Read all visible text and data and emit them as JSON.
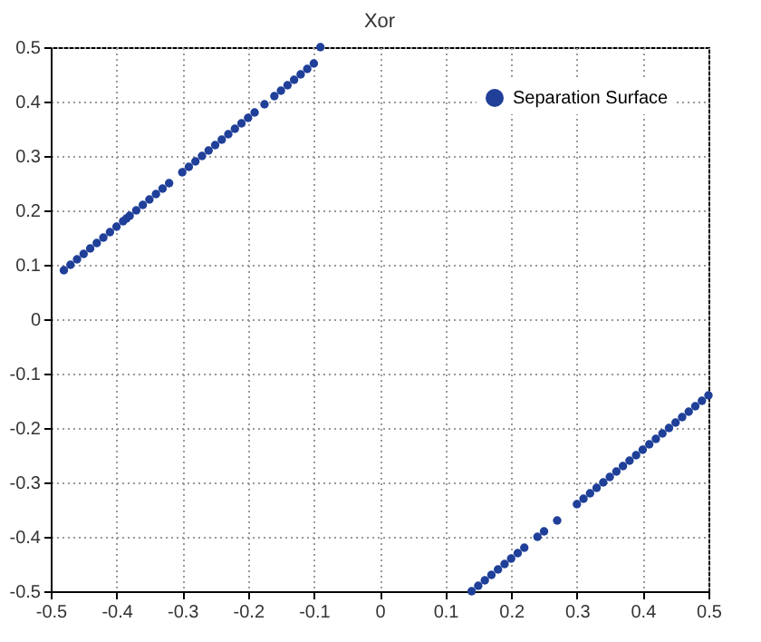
{
  "chart_data": {
    "type": "scatter",
    "title": "Xor",
    "xlim": [
      -0.5,
      0.5
    ],
    "ylim": [
      -0.5,
      0.5
    ],
    "xticks": [
      -0.5,
      -0.4,
      -0.3,
      -0.2,
      -0.1,
      0,
      0.1,
      0.2,
      0.3,
      0.4,
      0.5
    ],
    "yticks": [
      -0.5,
      -0.4,
      -0.3,
      -0.2,
      -0.1,
      0,
      0.1,
      0.2,
      0.3,
      0.4,
      0.5
    ],
    "grid": true,
    "legend": "top right",
    "marker": "circle",
    "series": [
      {
        "name": "Separation Surface",
        "color": "#1f3f99",
        "x": [
          -0.48,
          -0.47,
          -0.46,
          -0.45,
          -0.44,
          -0.43,
          -0.42,
          -0.41,
          -0.4,
          -0.39,
          -0.385,
          -0.38,
          -0.37,
          -0.36,
          -0.35,
          -0.34,
          -0.33,
          -0.32,
          -0.3,
          -0.29,
          -0.28,
          -0.27,
          -0.26,
          -0.25,
          -0.24,
          -0.23,
          -0.22,
          -0.21,
          -0.2,
          -0.19,
          -0.175,
          -0.16,
          -0.15,
          -0.14,
          -0.13,
          -0.12,
          -0.11,
          -0.1,
          -0.09,
          0.14,
          0.15,
          0.16,
          0.17,
          0.18,
          0.19,
          0.2,
          0.21,
          0.22,
          0.24,
          0.25,
          0.27,
          0.3,
          0.31,
          0.32,
          0.33,
          0.34,
          0.35,
          0.36,
          0.37,
          0.38,
          0.39,
          0.4,
          0.41,
          0.42,
          0.43,
          0.44,
          0.45,
          0.46,
          0.47,
          0.48,
          0.49,
          0.5
        ],
        "values": [
          0.09,
          0.1,
          0.11,
          0.12,
          0.13,
          0.14,
          0.15,
          0.16,
          0.17,
          0.18,
          0.185,
          0.19,
          0.2,
          0.21,
          0.22,
          0.23,
          0.24,
          0.25,
          0.27,
          0.28,
          0.29,
          0.3,
          0.31,
          0.32,
          0.33,
          0.34,
          0.35,
          0.36,
          0.37,
          0.38,
          0.395,
          0.41,
          0.42,
          0.43,
          0.44,
          0.45,
          0.46,
          0.47,
          0.5,
          -0.5,
          -0.49,
          -0.48,
          -0.47,
          -0.46,
          -0.45,
          -0.44,
          -0.43,
          -0.42,
          -0.4,
          -0.39,
          -0.37,
          -0.34,
          -0.33,
          -0.32,
          -0.31,
          -0.3,
          -0.29,
          -0.28,
          -0.27,
          -0.26,
          -0.25,
          -0.24,
          -0.23,
          -0.22,
          -0.21,
          -0.2,
          -0.19,
          -0.18,
          -0.17,
          -0.16,
          -0.15,
          -0.14
        ]
      }
    ]
  }
}
